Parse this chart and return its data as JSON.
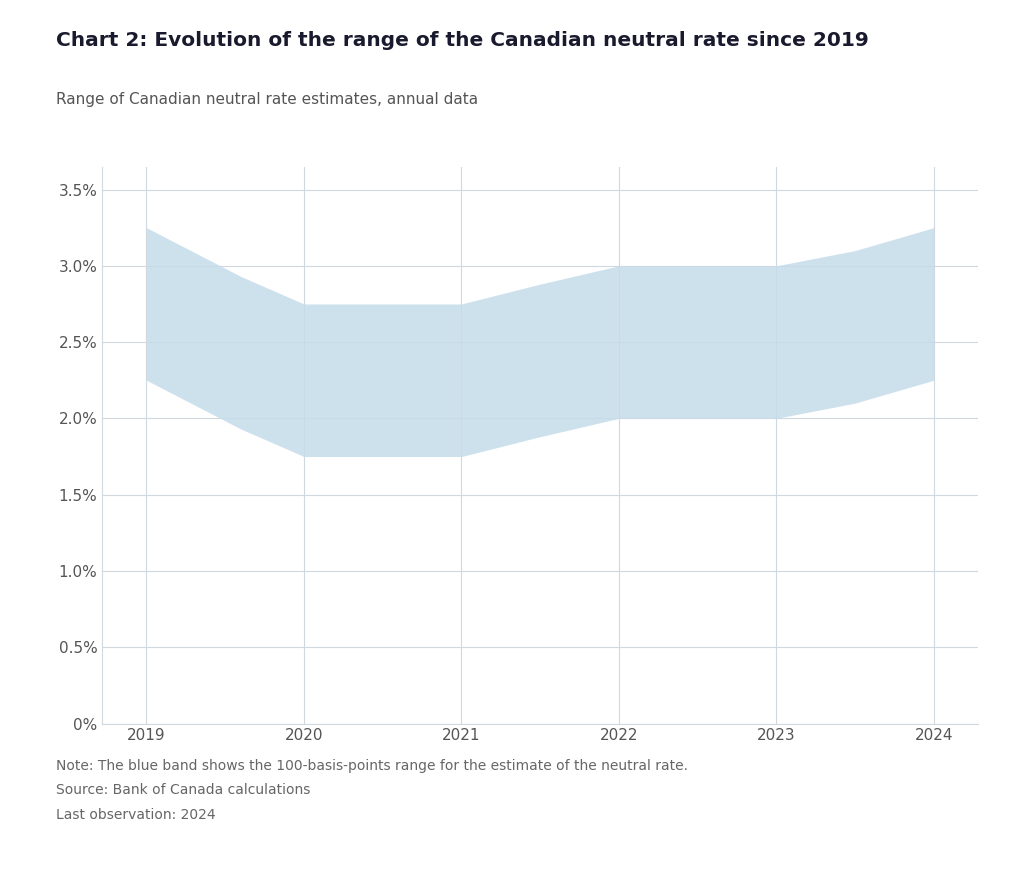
{
  "title": "Chart 2: Evolution of the range of the Canadian neutral rate since 2019",
  "subtitle": "Range of Canadian neutral rate estimates, annual data",
  "note_lines": [
    "Note: The blue band shows the 100-basis-points range for the estimate of the neutral rate.",
    "Source: Bank of Canada calculations",
    "Last observation: 2024"
  ],
  "x": [
    2019,
    2019.6,
    2020,
    2020.5,
    2021,
    2021.5,
    2022,
    2022.5,
    2023,
    2023.5,
    2024
  ],
  "upper": [
    3.25,
    2.93,
    2.75,
    2.75,
    2.75,
    2.88,
    3.0,
    3.0,
    3.0,
    3.1,
    3.25
  ],
  "lower": [
    2.25,
    1.93,
    1.75,
    1.75,
    1.75,
    1.88,
    2.0,
    2.0,
    2.0,
    2.1,
    2.25
  ],
  "fill_color": "#c5dcea",
  "fill_alpha": 0.85,
  "background_color": "#ffffff",
  "plot_bg_color": "#ffffff",
  "grid_color": "#d0d8e0",
  "title_color": "#1a1a2e",
  "text_color": "#555555",
  "note_color": "#666666",
  "title_fontsize": 14.5,
  "subtitle_fontsize": 11,
  "note_fontsize": 10,
  "tick_fontsize": 11,
  "ytick_labels": [
    "0%",
    "0.5%",
    "1.0%",
    "1.5%",
    "2.0%",
    "2.5%",
    "3.0%",
    "3.5%"
  ],
  "ytick_values": [
    0,
    0.005,
    0.01,
    0.015,
    0.02,
    0.025,
    0.03,
    0.035
  ],
  "xtick_labels": [
    "2019",
    "2020",
    "2021",
    "2022",
    "2023",
    "2024"
  ],
  "xtick_values": [
    2019,
    2020,
    2021,
    2022,
    2023,
    2024
  ],
  "ylim": [
    0,
    0.0365
  ],
  "xlim": [
    2018.72,
    2024.28
  ]
}
